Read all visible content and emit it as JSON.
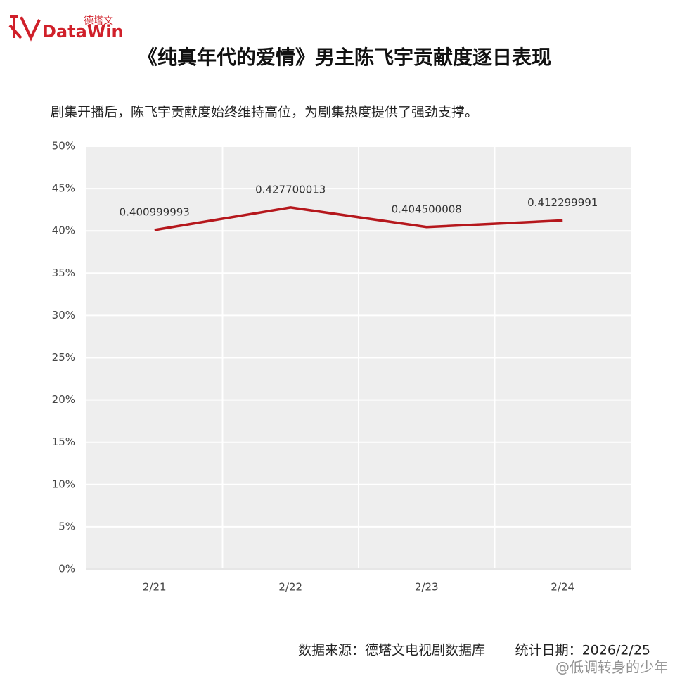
{
  "logo": {
    "brand": "DataWin",
    "brand_cn": "德塔文"
  },
  "chart_data": {
    "type": "line",
    "title": "《纯真年代的爱情》男主陈飞宇贡献度逐日表现",
    "subtitle": "剧集开播后，陈飞宇贡献度始终维持高位，为剧集热度提供了强劲支撑。",
    "categories": [
      "2/21",
      "2/22",
      "2/23",
      "2/24"
    ],
    "values": [
      0.400999993,
      0.427700013,
      0.404500008,
      0.412299991
    ],
    "color": "#b5171c",
    "ylim": [
      0,
      0.5
    ],
    "yticks": [
      {
        "value": 0,
        "label": "0%"
      },
      {
        "value": 0.05,
        "label": "5%"
      },
      {
        "value": 0.1,
        "label": "10%"
      },
      {
        "value": 0.15,
        "label": "15%"
      },
      {
        "value": 0.2,
        "label": "20%"
      },
      {
        "value": 0.25,
        "label": "25%"
      },
      {
        "value": 0.3,
        "label": "30%"
      },
      {
        "value": 0.35,
        "label": "35%"
      },
      {
        "value": 0.4,
        "label": "40%"
      },
      {
        "value": 0.45,
        "label": "45%"
      },
      {
        "value": 0.5,
        "label": "50%"
      }
    ],
    "grid": true
  },
  "footer": {
    "source": "数据来源：德塔文电视剧数据库",
    "date": "统计日期：2026/2/25"
  },
  "watermark": "@低调转身的少年"
}
